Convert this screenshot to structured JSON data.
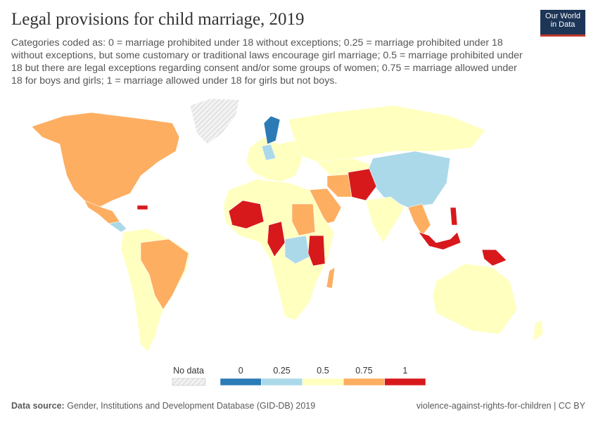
{
  "header": {
    "title": "Legal provisions for child marriage, 2019",
    "subtitle": "Categories coded as: 0 = marriage prohibited under 18 without exceptions; 0.25 = marriage prohibited under 18 without exceptions, but some customary or traditional laws encourage girl marriage; 0.5 = marriage prohibited under 18 but there are legal exceptions regarding consent and/or some groups of women; 0.75 = marriage allowed under 18 for boys and girls; 1 = marriage allowed under 18 for girls but not boys.",
    "logo": [
      "Our World",
      "in Data"
    ]
  },
  "legend": {
    "no_data": "No data",
    "bins": [
      {
        "value": 0,
        "color": "#2c7bb6"
      },
      {
        "value": 0.25,
        "color": "#abd9e9"
      },
      {
        "value": 0.5,
        "color": "#ffffbf"
      },
      {
        "value": 0.75,
        "color": "#fdae61"
      },
      {
        "value": 1,
        "color": "#d7191c"
      }
    ]
  },
  "footer": {
    "source_label": "Data source:",
    "source": "Gender, Institutions and Development Database (GID-DB) 2019",
    "right": "violence-against-rights-for-children | CC BY"
  }
}
